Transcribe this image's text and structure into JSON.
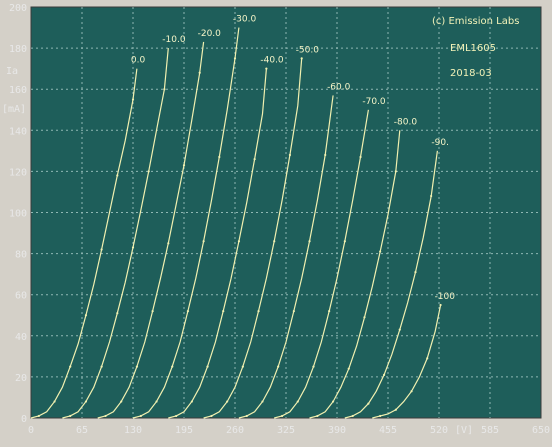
{
  "chart_data": {
    "type": "line",
    "title": "",
    "xlabel": "[V]",
    "ylabel": "Ia [mA]",
    "ylabel_top": "Ia",
    "ylabel_unit": "[mA]",
    "xlim": [
      0,
      650
    ],
    "ylim": [
      0,
      200
    ],
    "x_ticks": [
      "0",
      "65",
      "130",
      "195",
      "260",
      "325",
      "390",
      "455",
      "520",
      "585",
      "650"
    ],
    "y_ticks": [
      "0",
      "20",
      "40",
      "60",
      "80",
      "100",
      "120",
      "140",
      "160",
      "180",
      "200"
    ],
    "x_unit_label": "[V]",
    "grid": true,
    "annotations": [
      "(c) Emission Labs",
      "EML1605",
      "2018-03"
    ],
    "colors": {
      "background": "#1e5e5a",
      "curve": "#f0f0b0",
      "grid": "#8fb7b3",
      "text": "#e8e8e8",
      "frame": "#d4d0c8"
    },
    "series": [
      {
        "name": "0.0",
        "x": [
          0,
          10,
          20,
          30,
          40,
          50,
          60,
          70,
          80,
          90,
          100,
          110,
          120,
          130,
          135
        ],
        "y": [
          0,
          1,
          3,
          8,
          15,
          25,
          36,
          50,
          65,
          82,
          100,
          118,
          135,
          155,
          170
        ]
      },
      {
        "name": "-10.0",
        "x": [
          40,
          50,
          60,
          70,
          80,
          90,
          100,
          110,
          120,
          130,
          140,
          150,
          160,
          170,
          175
        ],
        "y": [
          0,
          1,
          3,
          8,
          15,
          25,
          37,
          51,
          66,
          83,
          101,
          120,
          140,
          160,
          180
        ]
      },
      {
        "name": "-20.0",
        "x": [
          85,
          95,
          105,
          115,
          125,
          135,
          145,
          155,
          165,
          175,
          185,
          195,
          205,
          215,
          220
        ],
        "y": [
          0,
          1,
          3,
          8,
          15,
          25,
          37,
          52,
          68,
          85,
          104,
          123,
          145,
          168,
          183
        ]
      },
      {
        "name": "-30.0",
        "x": [
          130,
          140,
          150,
          160,
          170,
          180,
          190,
          200,
          210,
          220,
          230,
          240,
          250,
          260,
          265
        ],
        "y": [
          0,
          1,
          3,
          8,
          15,
          25,
          37,
          52,
          68,
          86,
          106,
          127,
          150,
          175,
          190
        ]
      },
      {
        "name": "-40.0",
        "x": [
          175,
          185,
          195,
          205,
          215,
          225,
          235,
          245,
          255,
          265,
          275,
          285,
          295,
          300
        ],
        "y": [
          0,
          1,
          3,
          8,
          15,
          25,
          37,
          52,
          68,
          86,
          105,
          126,
          148,
          170
        ]
      },
      {
        "name": "-50.0",
        "x": [
          220,
          230,
          240,
          250,
          260,
          270,
          280,
          290,
          300,
          310,
          320,
          330,
          340,
          345
        ],
        "y": [
          0,
          1,
          3,
          8,
          15,
          25,
          37,
          52,
          68,
          86,
          106,
          128,
          152,
          175
        ]
      },
      {
        "name": "-60.0",
        "x": [
          265,
          275,
          285,
          295,
          305,
          315,
          325,
          335,
          345,
          355,
          365,
          375,
          385
        ],
        "y": [
          0,
          1,
          3,
          8,
          15,
          25,
          37,
          52,
          68,
          86,
          106,
          128,
          157
        ]
      },
      {
        "name": "-70.0",
        "x": [
          310,
          320,
          330,
          340,
          350,
          360,
          370,
          380,
          390,
          400,
          410,
          420,
          430
        ],
        "y": [
          0,
          1,
          3,
          8,
          15,
          25,
          37,
          52,
          68,
          86,
          106,
          127,
          150
        ]
      },
      {
        "name": "-80.0",
        "x": [
          355,
          365,
          375,
          385,
          395,
          405,
          415,
          425,
          435,
          445,
          455,
          465,
          470
        ],
        "y": [
          0,
          1,
          3,
          8,
          15,
          24,
          35,
          49,
          64,
          81,
          99,
          120,
          140
        ]
      },
      {
        "name": "-90.",
        "x": [
          400,
          410,
          420,
          430,
          440,
          450,
          460,
          470,
          480,
          490,
          500,
          510,
          518
        ],
        "y": [
          0,
          1,
          3,
          7,
          13,
          21,
          31,
          43,
          56,
          71,
          88,
          108,
          130
        ]
      },
      {
        "name": "-100",
        "x": [
          435,
          445,
          455,
          465,
          475,
          485,
          495,
          505,
          515,
          522
        ],
        "y": [
          0,
          1,
          2,
          4,
          8,
          13,
          20,
          29,
          42,
          55
        ]
      }
    ]
  }
}
